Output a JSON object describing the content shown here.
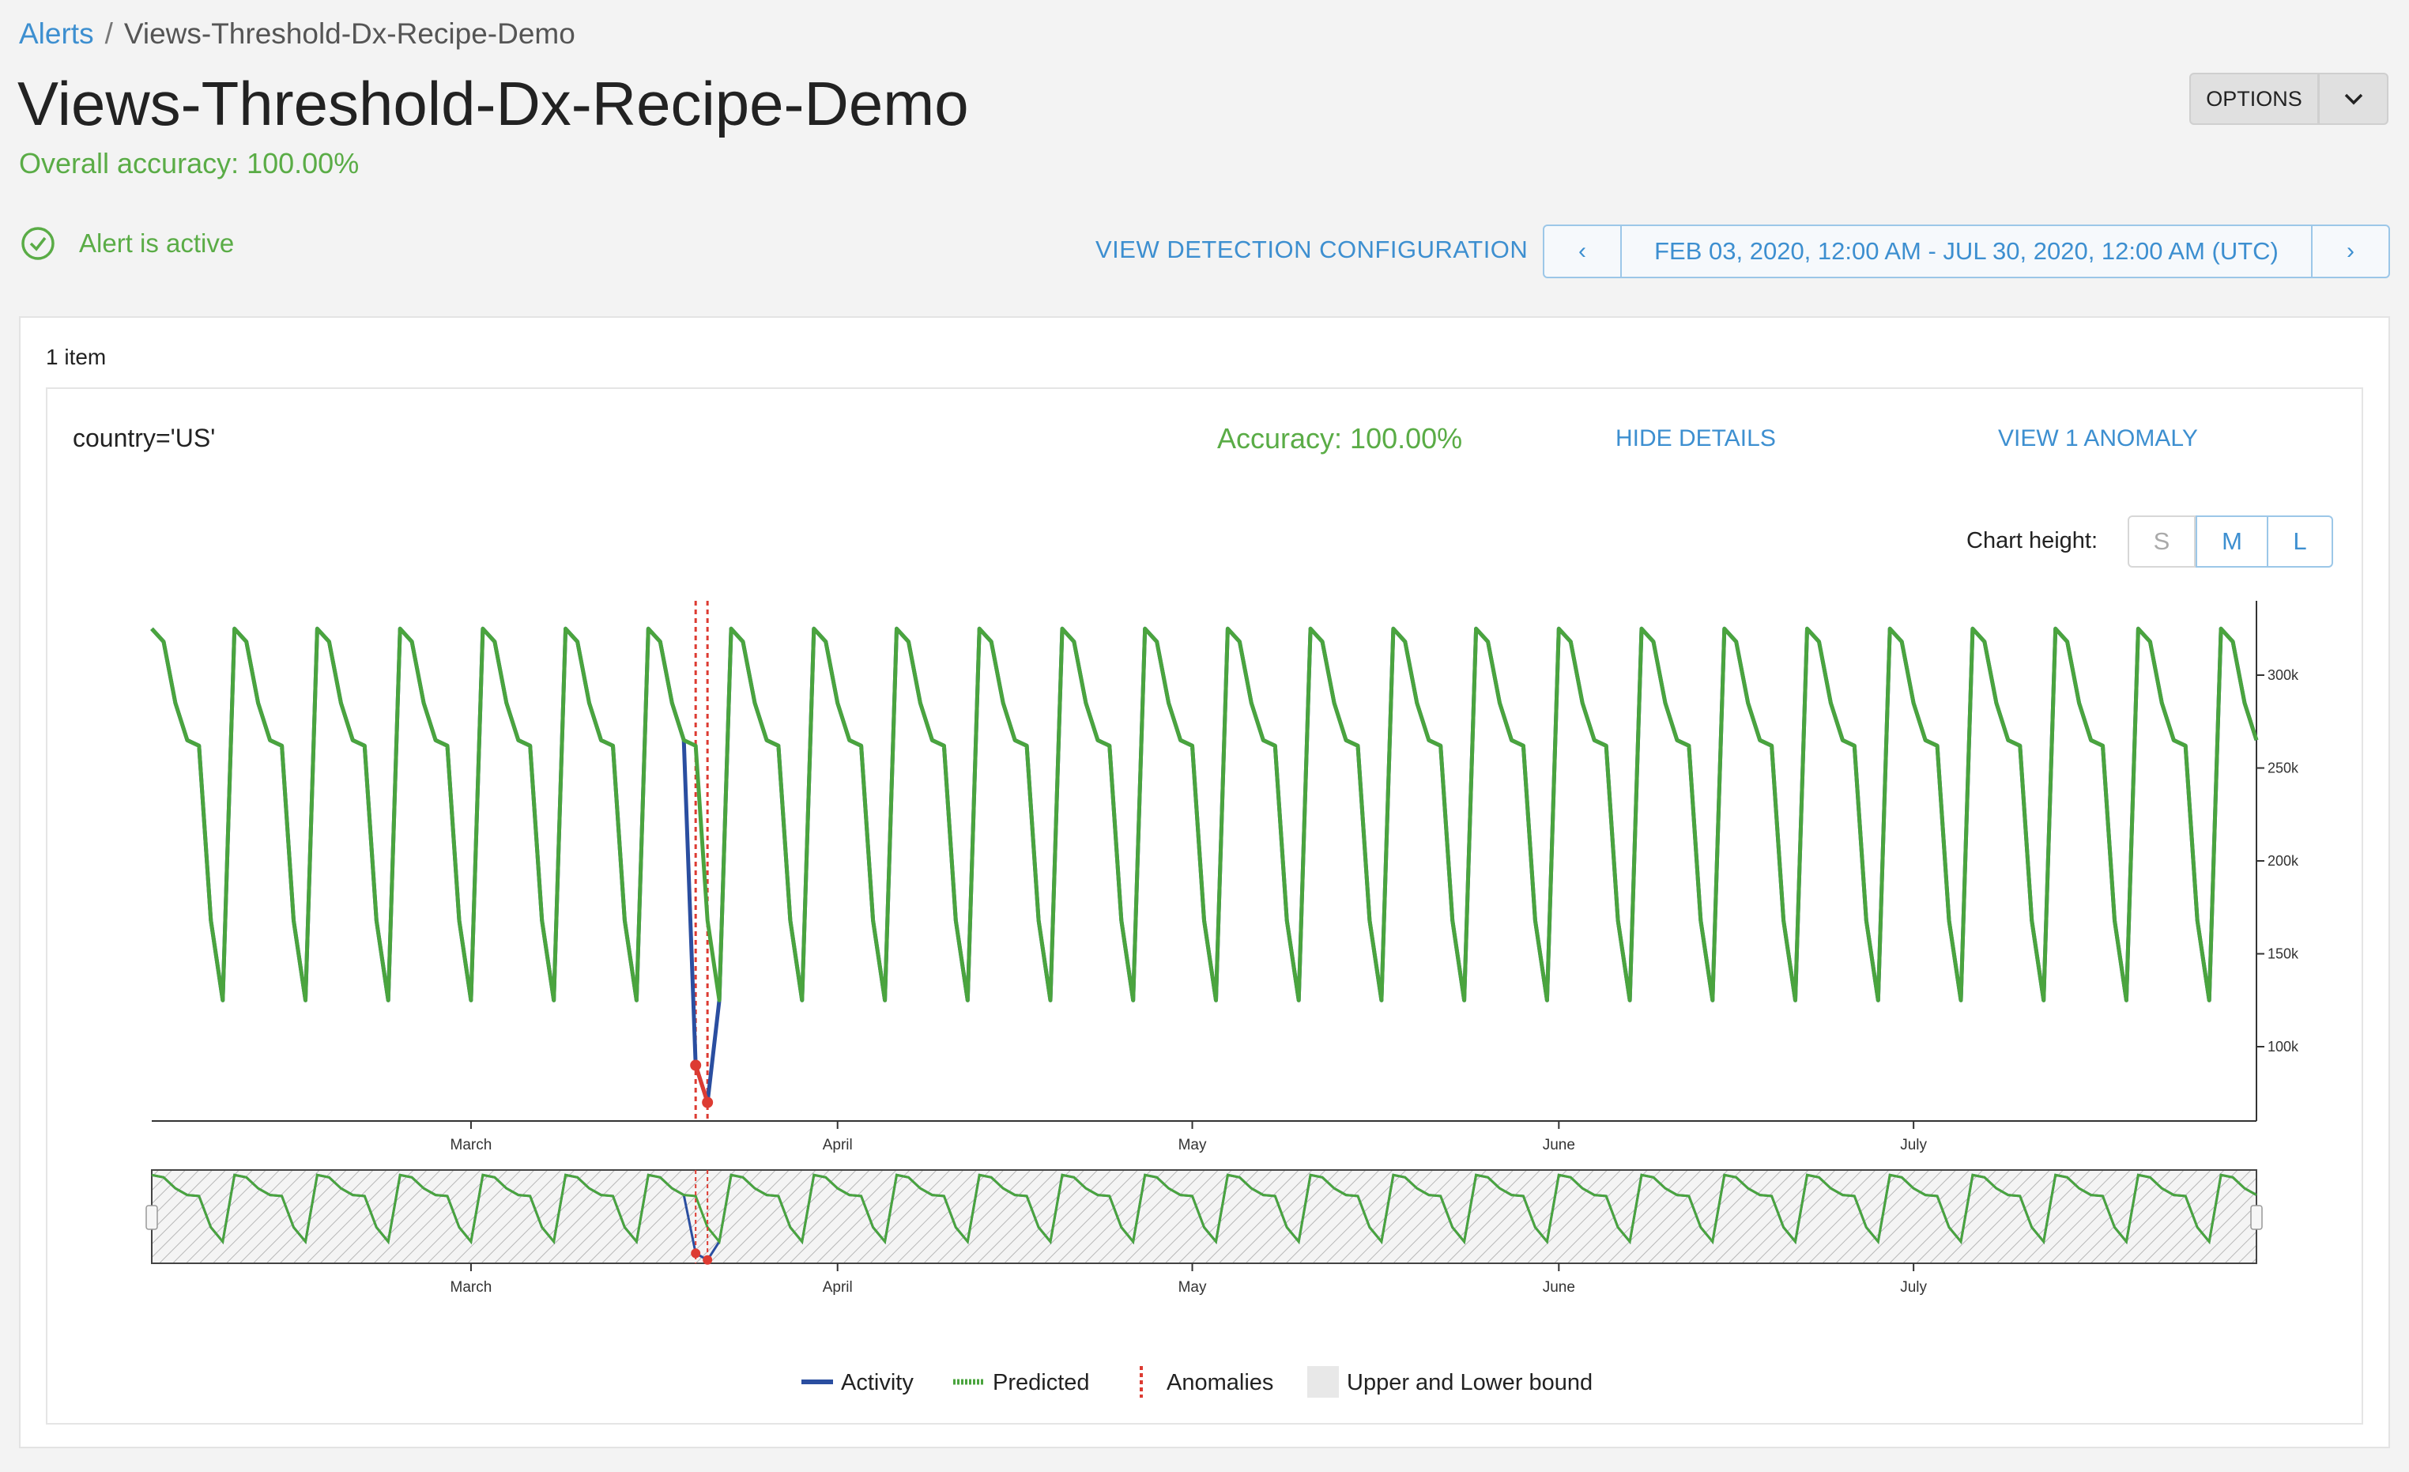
{
  "breadcrumb": {
    "parent": "Alerts",
    "separator": "/",
    "current": "Views-Threshold-Dx-Recipe-Demo"
  },
  "header": {
    "title": "Views-Threshold-Dx-Recipe-Demo",
    "overall_accuracy": "Overall accuracy: 100.00%",
    "options_label": "OPTIONS"
  },
  "status": {
    "text": "Alert is active"
  },
  "actions": {
    "view_config": "VIEW DETECTION CONFIGURATION"
  },
  "date_range": {
    "prev": "‹",
    "text": "FEB 03, 2020, 12:00 AM - JUL 30, 2020, 12:00 AM (UTC)",
    "next": "›"
  },
  "results": {
    "item_count": "1 item",
    "dimension": "country='US'",
    "accuracy": "Accuracy: 100.00%",
    "hide_details": "HIDE DETAILS",
    "view_anomaly": "VIEW 1 ANOMALY"
  },
  "chart_height": {
    "label": "Chart height:",
    "options": [
      "S",
      "M",
      "L"
    ],
    "selected": "M"
  },
  "colors": {
    "activity": "#2a4ea0",
    "predicted": "#4aa43e",
    "anomaly": "#dd3b32",
    "bound": "#e8e8e8",
    "accent": "#3d8fd0",
    "success": "#5aac46"
  },
  "chart_data": {
    "type": "line",
    "x_start": "2020-02-03",
    "x_end": "2020-07-30",
    "x_ticks": [
      "March",
      "April",
      "May",
      "June",
      "July"
    ],
    "x_tick_dates": [
      "2020-03-01",
      "2020-04-01",
      "2020-05-01",
      "2020-06-01",
      "2020-07-01"
    ],
    "y_ticks": [
      "100k",
      "150k",
      "200k",
      "250k",
      "300k"
    ],
    "y_tick_values": [
      100000,
      150000,
      200000,
      250000,
      300000
    ],
    "ylim": [
      60000,
      340000
    ],
    "weekly_pattern": [
      325000,
      318000,
      285000,
      265000,
      262000,
      168000,
      125000
    ],
    "series": [
      {
        "name": "Activity",
        "anomaly_dates": [
          "2020-03-20",
          "2020-03-21"
        ],
        "anomaly_values": [
          90000,
          70000
        ]
      },
      {
        "name": "Predicted"
      }
    ],
    "legend": [
      "Activity",
      "Predicted",
      "Anomalies",
      "Upper and Lower bound"
    ],
    "legend_position": "bottom-center",
    "navigator": true
  }
}
